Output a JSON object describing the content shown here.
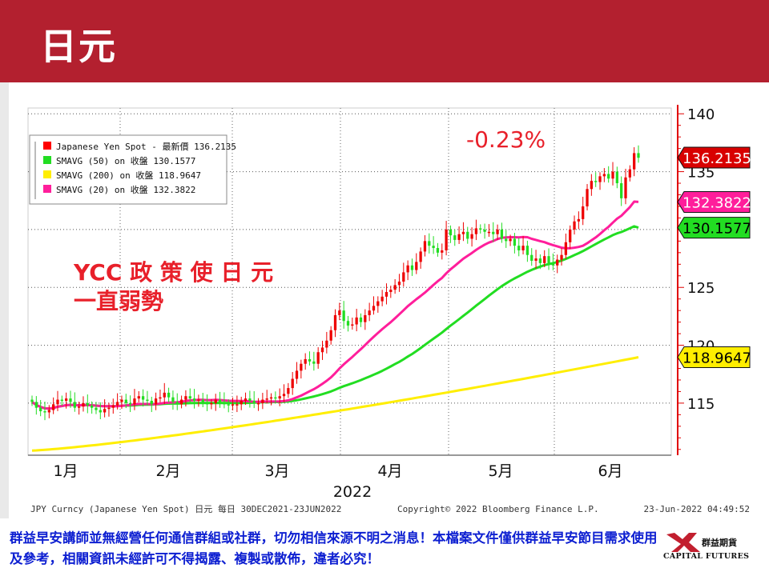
{
  "header": {
    "title": "日元"
  },
  "annotations": {
    "change_pct": "-0.23%",
    "comment_line1": "YCC 政 策 使 日 元",
    "comment_line2": "一直弱勢"
  },
  "chart_data": {
    "type": "candlestick",
    "title": "",
    "xlabel": "2022",
    "ylabel": "",
    "x_tick_labels": [
      "1月",
      "2月",
      "3月",
      "4月",
      "5月",
      "6月"
    ],
    "year_label": "2022",
    "y_ticks": [
      115,
      120,
      125,
      130,
      135,
      140
    ],
    "y_tick_labels": [
      "115",
      "120",
      "125",
      "130",
      "135",
      "140"
    ],
    "ylim": [
      110.5,
      140.5
    ],
    "grid": true,
    "legend_position": "top-left",
    "legend": [
      {
        "label": "Japanese Yen Spot - 最新價 136.2135",
        "color": "#ff0000"
      },
      {
        "label": "SMAVG (50)  on 收盤 130.1577",
        "color": "#22dd22"
      },
      {
        "label": "SMAVG (200)  on 收盤 118.9647",
        "color": "#ffee00"
      },
      {
        "label": "SMAVG (20)  on 收盤 132.3822",
        "color": "#ff1e9b"
      }
    ],
    "last_value_labels": [
      {
        "text": "136.2135",
        "value": 136.2135,
        "bg": "#d80000",
        "fg": "#ffffff"
      },
      {
        "text": "132.3822",
        "value": 132.3822,
        "bg": "#ff1e9b",
        "fg": "#ffffff"
      },
      {
        "text": "130.1577",
        "value": 130.1577,
        "bg": "#22dd22",
        "fg": "#000000"
      },
      {
        "text": "118.9647",
        "value": 118.9647,
        "bg": "#ffee00",
        "fg": "#000000"
      }
    ],
    "source_left": "JPY Curncy (Japanese Yen Spot) 日元  每日 30DEC2021-23JUN2022",
    "source_center": "Copyright© 2022 Bloomberg Finance L.P.",
    "source_right": "23-Jun-2022 04:49:52",
    "price": [
      115.1,
      114.6,
      114.3,
      114.2,
      114.4,
      114.9,
      115.3,
      115.2,
      115.4,
      115.1,
      114.6,
      114.7,
      115.0,
      114.8,
      114.6,
      114.4,
      114.2,
      114.5,
      114.6,
      114.8,
      115.1,
      115.3,
      115.0,
      114.9,
      115.4,
      115.6,
      115.3,
      115.2,
      114.9,
      115.4,
      115.5,
      115.9,
      115.5,
      115.1,
      114.9,
      115.3,
      115.6,
      115.4,
      115.2,
      115.3,
      115.0,
      114.9,
      115.0,
      115.3,
      115.1,
      114.9,
      114.8,
      114.9,
      114.9,
      115.2,
      115.4,
      115.2,
      115.0,
      115.0,
      115.3,
      115.4,
      115.5,
      115.4,
      115.6,
      115.8,
      116.3,
      117.1,
      117.8,
      118.4,
      118.8,
      118.6,
      118.4,
      119.4,
      119.8,
      120.4,
      121.3,
      122.6,
      123.0,
      122.1,
      121.7,
      121.8,
      122.4,
      122.0,
      122.6,
      123.0,
      123.4,
      123.8,
      124.2,
      124.6,
      124.8,
      125.2,
      125.5,
      126.3,
      126.9,
      126.5,
      127.2,
      128.1,
      129.0,
      128.6,
      128.4,
      128.0,
      128.2,
      130.0,
      129.5,
      129.1,
      129.6,
      129.8,
      129.2,
      129.6,
      130.1,
      130.0,
      129.8,
      129.8,
      129.6,
      130.0,
      129.2,
      129.0,
      129.2,
      128.6,
      128.2,
      128.6,
      127.8,
      127.3,
      127.5,
      127.1,
      127.7,
      127.1,
      126.9,
      127.4,
      127.8,
      128.9,
      130.0,
      130.7,
      130.9,
      132.0,
      133.5,
      134.2,
      134.1,
      134.6,
      134.8,
      134.4,
      135.0,
      134.0,
      132.7,
      134.5,
      135.2,
      136.6,
      136.2
    ]
  }
}
